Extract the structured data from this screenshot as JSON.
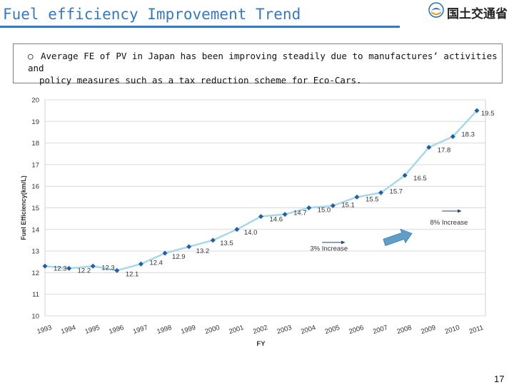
{
  "header": {
    "title": "Fuel efficiency Improvement Trend",
    "logo_text": "国土交通省"
  },
  "note": {
    "bullet": "○",
    "line1": "Average FE of PV in Japan has been improving steadily due to manufactures’ activities and",
    "line2": "policy measures such as a tax reduction scheme for Eco-Cars."
  },
  "chart_data": {
    "type": "line",
    "x": [
      "1993",
      "1994",
      "1995",
      "1996",
      "1997",
      "1998",
      "1999",
      "2000",
      "2001",
      "2002",
      "2003",
      "2004",
      "2005",
      "2006",
      "2007",
      "2008",
      "2009",
      "2010",
      "2011"
    ],
    "series": [
      {
        "values": [
          12.3,
          12.2,
          12.3,
          12.1,
          12.4,
          12.9,
          13.2,
          13.5,
          14.0,
          14.6,
          14.7,
          15.0,
          15.1,
          15.5,
          15.7,
          16.5,
          17.8,
          18.3,
          19.5
        ]
      }
    ],
    "data_labels": [
      "12.3",
      "12.2",
      "12.3",
      "12.1",
      "12.4",
      "12.9",
      "13.2",
      "13.5",
      "14.0",
      "14.6",
      "14.7",
      "15.0",
      "15.1",
      "15.5",
      "15.7",
      "16.5",
      "17.8",
      "18.3",
      "19.5"
    ],
    "xlabel": "FY",
    "ylabel": "Fuel Efficiency(km/L)",
    "ylim": [
      10,
      20
    ],
    "yticks": [
      "10",
      "11",
      "12",
      "13",
      "14",
      "15",
      "16",
      "17",
      "18",
      "19",
      "20"
    ],
    "grid": true,
    "annotations": {
      "left": "3% Increase",
      "right": "8% Increase"
    },
    "colors": {
      "line": "#a8d8e8",
      "marker": "#1f5fa8",
      "grid": "#d9d9d9",
      "arrow": "#5e9ec8"
    }
  },
  "page_number": "17"
}
